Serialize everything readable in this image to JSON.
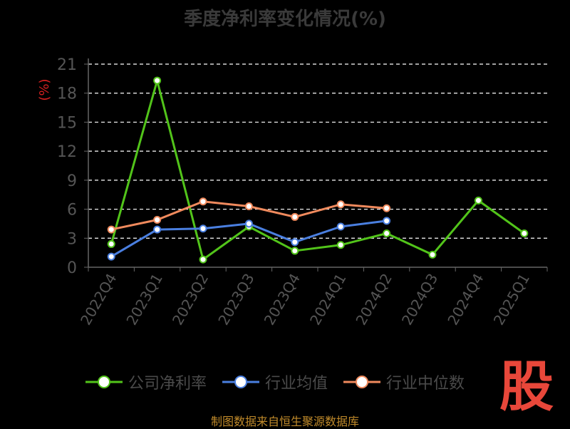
{
  "title": "季度净利率变化情况(%)",
  "source": "制图数据来自恒生聚源数据库",
  "brand_char": "股",
  "colors": {
    "company": "#52c41a",
    "industry_avg": "#4a7fe0",
    "industry_median": "#f08a5d",
    "grid": "#ffffff",
    "axis": "#666666",
    "tick": "#555555",
    "unit": "#d42020"
  },
  "chart_data": {
    "type": "line",
    "ylabel": "(%)",
    "ylim": [
      0,
      21
    ],
    "yticks": [
      0,
      3,
      6,
      9,
      12,
      15,
      18,
      21
    ],
    "grid": true,
    "legend_position": "bottom",
    "categories": [
      "2022Q4",
      "2023Q1",
      "2023Q2",
      "2023Q3",
      "2023Q4",
      "2024Q1",
      "2024Q2",
      "2024Q3",
      "2024Q4",
      "2025Q1"
    ],
    "series": [
      {
        "name": "公司净利率",
        "color": "#52c41a",
        "values": [
          2.4,
          19.3,
          0.8,
          4.2,
          1.7,
          2.3,
          3.5,
          1.3,
          6.9,
          3.5
        ]
      },
      {
        "name": "行业均值",
        "color": "#4a7fe0",
        "values": [
          1.1,
          3.9,
          4.0,
          4.5,
          2.6,
          4.2,
          4.8,
          null,
          null,
          null
        ]
      },
      {
        "name": "行业中位数",
        "color": "#f08a5d",
        "values": [
          3.9,
          4.9,
          6.8,
          6.3,
          5.2,
          6.5,
          6.1,
          null,
          null,
          null
        ]
      }
    ]
  }
}
